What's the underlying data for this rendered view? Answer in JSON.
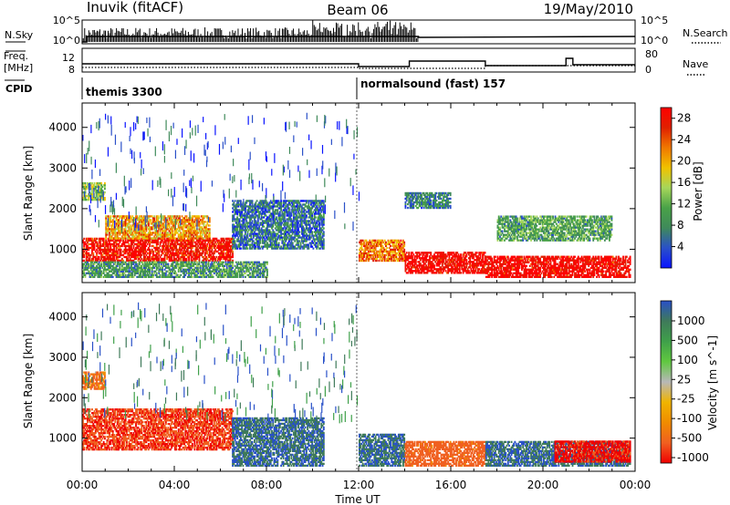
{
  "header": {
    "station": "Inuvik  (fitACF)",
    "beam": "Beam 06",
    "date": "19/May/2010"
  },
  "status_panels": {
    "nsky_label": "N.Sky",
    "nsky_ticks": [
      "10^5",
      "10^0"
    ],
    "nsearch_label": "N.Search",
    "nsearch_ticks": [
      "10^5",
      "10^0"
    ],
    "freq_label": "Freq.",
    "freq_unit": "[MHz]",
    "freq_ticks": [
      "12",
      "8"
    ],
    "nave_label": "Nave",
    "nave_ticks": [
      "80",
      "0"
    ],
    "cpid_label": "CPID",
    "cpid_segments": [
      {
        "start_h": 0,
        "name": "themis 3300"
      },
      {
        "start_h": 12,
        "name": "normalsound (fast) 157"
      }
    ]
  },
  "time_axis": {
    "label": "Time UT",
    "ticks": [
      "00:00",
      "04:00",
      "08:00",
      "12:00",
      "16:00",
      "20:00",
      "00:00"
    ]
  },
  "chart_data": [
    {
      "type": "heatmap",
      "title": "",
      "xlabel": "Time UT",
      "ylabel": "Slant Range [km]",
      "x_range_hours": [
        0,
        24
      ],
      "ylim": [
        180,
        4600
      ],
      "y_ticks": [
        1000,
        2000,
        3000,
        4000
      ],
      "colorbar": {
        "label": "Power [dB]",
        "ticks": [
          "4",
          "8",
          "12",
          "16",
          "20",
          "24",
          "28"
        ],
        "range": [
          0,
          30
        ],
        "colors": [
          "#0a14ff",
          "#2a50c8",
          "#3f8a5a",
          "#49a248",
          "#a6d65a",
          "#f0c200",
          "#f07800",
          "#e02000",
          "#ff0000"
        ]
      },
      "regions": [
        {
          "t": [
            0.0,
            1.0
          ],
          "range_km": [
            2200,
            2650
          ],
          "value_db": 14
        },
        {
          "t": [
            0.0,
            6.5
          ],
          "range_km": [
            700,
            1250
          ],
          "value_db": 27
        },
        {
          "t": [
            1.0,
            5.5
          ],
          "range_km": [
            1250,
            1800
          ],
          "value_db": 20
        },
        {
          "t": [
            0.0,
            8.0
          ],
          "range_km": [
            300,
            700
          ],
          "value_db": 10
        },
        {
          "t": [
            6.5,
            10.5
          ],
          "range_km": [
            1000,
            2200
          ],
          "value_db": 7
        },
        {
          "t": [
            12.0,
            14.0
          ],
          "range_km": [
            700,
            1200
          ],
          "value_db": 22
        },
        {
          "t": [
            14.0,
            17.5
          ],
          "range_km": [
            400,
            900
          ],
          "value_db": 28
        },
        {
          "t": [
            17.5,
            23.8
          ],
          "range_km": [
            300,
            800
          ],
          "value_db": 28
        },
        {
          "t": [
            14.0,
            16.0
          ],
          "range_km": [
            2000,
            2400
          ],
          "value_db": 8
        },
        {
          "t": [
            18.0,
            23.0
          ],
          "range_km": [
            1200,
            1800
          ],
          "value_db": 11
        }
      ]
    },
    {
      "type": "heatmap",
      "title": "",
      "xlabel": "Time UT",
      "ylabel": "Slant Range [km]",
      "x_range_hours": [
        0,
        24
      ],
      "ylim": [
        180,
        4600
      ],
      "y_ticks": [
        1000,
        2000,
        3000,
        4000
      ],
      "colorbar": {
        "label": "Velocity [m s^-1]",
        "ticks": [
          "1000",
          "500",
          "100",
          "25",
          "-25",
          "-100",
          "-500",
          "-1000"
        ],
        "colors": [
          "#2850c8",
          "#3f7a5a",
          "#3fa04a",
          "#60c840",
          "#b8b8b8",
          "#f0b400",
          "#f08c00",
          "#f06020",
          "#f00000"
        ]
      },
      "regions": [
        {
          "t": [
            0.0,
            1.0
          ],
          "range_km": [
            2200,
            2650
          ],
          "value_ms": -50
        },
        {
          "t": [
            0.0,
            6.5
          ],
          "range_km": [
            700,
            1700
          ],
          "value_ms": -200
        },
        {
          "t": [
            6.5,
            10.5
          ],
          "range_km": [
            300,
            1500
          ],
          "value_ms": 200
        },
        {
          "t": [
            12.0,
            14.0
          ],
          "range_km": [
            300,
            1100
          ],
          "value_ms": 200
        },
        {
          "t": [
            14.0,
            17.5
          ],
          "range_km": [
            300,
            900
          ],
          "value_ms": -100
        },
        {
          "t": [
            17.5,
            23.8
          ],
          "range_km": [
            300,
            900
          ],
          "value_ms": 200
        },
        {
          "t": [
            20.5,
            23.8
          ],
          "range_km": [
            400,
            900
          ],
          "value_ms": -300
        }
      ]
    }
  ]
}
